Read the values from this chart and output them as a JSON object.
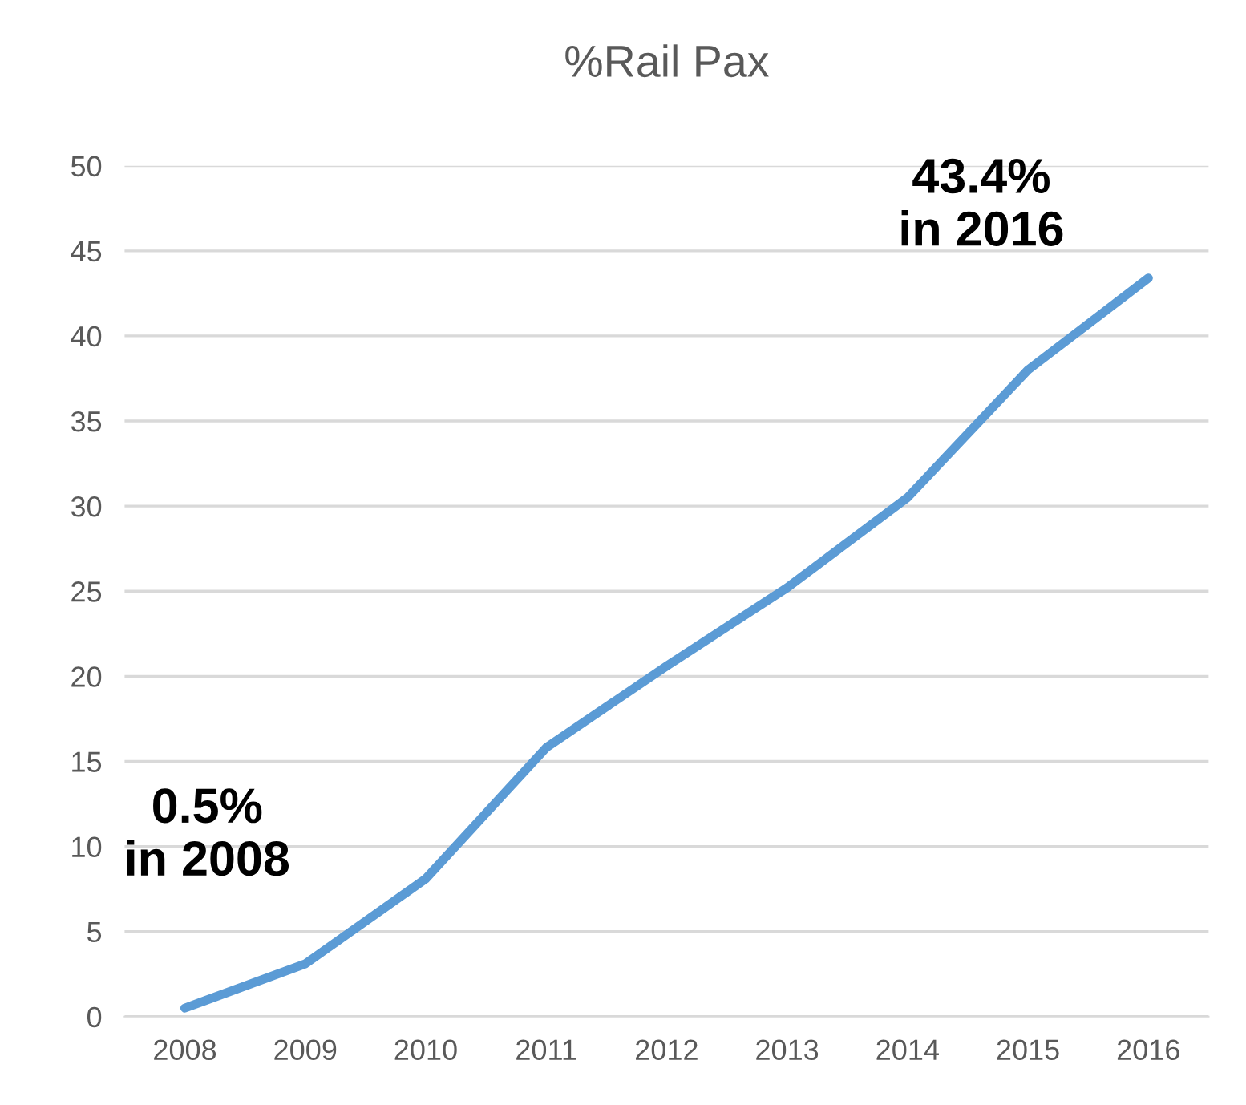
{
  "chart_data": {
    "type": "line",
    "title": "%Rail Pax",
    "categories": [
      "2008",
      "2009",
      "2010",
      "2011",
      "2012",
      "2013",
      "2014",
      "2015",
      "2016"
    ],
    "series": [
      {
        "color": "#5b9bd5",
        "values": [
          0.5,
          3.1,
          8.1,
          15.8,
          20.6,
          25.2,
          30.5,
          38,
          43.4
        ]
      }
    ],
    "ylim": [
      0,
      50
    ],
    "yticks": [
      0,
      5,
      10,
      15,
      20,
      25,
      30,
      35,
      40,
      45,
      50
    ],
    "grid": "y",
    "marker": "none",
    "line_style": "solid",
    "annotations": [
      {
        "text": "0.5%\nin 2008",
        "x": "2008",
        "y": 0.5
      },
      {
        "text": "43.4%\nin 2016",
        "x": "2016",
        "y": 43.4
      }
    ]
  }
}
